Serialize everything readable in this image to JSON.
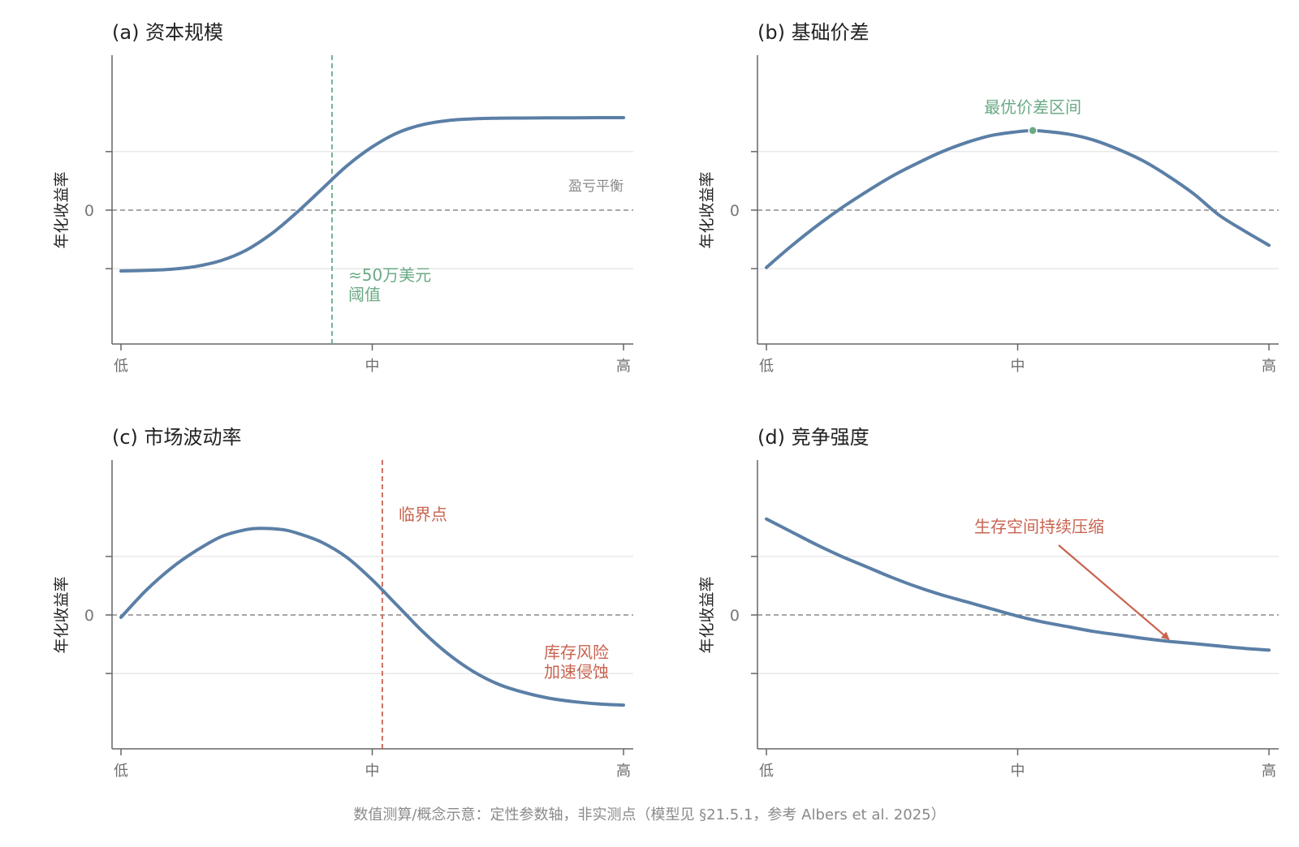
{
  "colors": {
    "curve": "#5b7fa6",
    "green": "#6aaa85",
    "red": "#c8634f",
    "axis": "#666666",
    "grid": "#e4e4e4",
    "zero": "#8a8a8a"
  },
  "footnote": "数值测算/概念示意：定性参数轴，非实测点（模型见 §21.5.1，参考 Albers et al. 2025）",
  "chart_data": [
    {
      "type": "line",
      "title": "(a) 资本规模",
      "ylabel": "年化收益率",
      "xticks": [
        "低",
        "中",
        "高"
      ],
      "xlim": [
        0,
        1
      ],
      "ylim": [
        -1,
        1
      ],
      "zero_label": "0",
      "zero_line_label": "盈亏平衡",
      "series": [
        {
          "x": [
            0,
            0.05,
            0.1,
            0.15,
            0.2,
            0.25,
            0.3,
            0.35,
            0.4,
            0.45,
            0.5,
            0.55,
            0.6,
            0.65,
            0.7,
            0.75,
            0.8,
            0.85,
            0.9,
            0.95,
            1
          ],
          "y": [
            -0.52,
            -0.515,
            -0.505,
            -0.48,
            -0.43,
            -0.34,
            -0.2,
            -0.02,
            0.18,
            0.38,
            0.54,
            0.66,
            0.73,
            0.765,
            0.78,
            0.785,
            0.787,
            0.788,
            0.789,
            0.79,
            0.79
          ]
        }
      ],
      "vline": {
        "x": 0.42,
        "style": "green",
        "label": [
          "≈50万美元",
          "阈值"
        ]
      }
    },
    {
      "type": "line",
      "title": "(b) 基础价差",
      "ylabel": "年化收益率",
      "xticks": [
        "低",
        "中",
        "高"
      ],
      "xlim": [
        0,
        1
      ],
      "ylim": [
        -1,
        1
      ],
      "zero_label": "0",
      "series": [
        {
          "x": [
            0,
            0.05,
            0.1,
            0.15,
            0.2,
            0.25,
            0.3,
            0.35,
            0.4,
            0.45,
            0.5,
            0.53,
            0.55,
            0.6,
            0.65,
            0.7,
            0.75,
            0.8,
            0.85,
            0.9,
            0.95,
            1
          ],
          "y": [
            -0.49,
            -0.305,
            -0.135,
            0.02,
            0.16,
            0.29,
            0.4,
            0.5,
            0.58,
            0.64,
            0.67,
            0.68,
            0.675,
            0.65,
            0.6,
            0.52,
            0.42,
            0.29,
            0.14,
            -0.04,
            -0.175,
            -0.3
          ]
        }
      ],
      "marker": {
        "x": 0.53,
        "y": 0.68,
        "label": "最优价差区间"
      }
    },
    {
      "type": "line",
      "title": "(c) 市场波动率",
      "ylabel": "年化收益率",
      "xticks": [
        "低",
        "中",
        "高"
      ],
      "xlim": [
        0,
        1
      ],
      "ylim": [
        -1,
        1
      ],
      "zero_label": "0",
      "series": [
        {
          "x": [
            0,
            0.05,
            0.1,
            0.15,
            0.2,
            0.25,
            0.28,
            0.32,
            0.35,
            0.4,
            0.45,
            0.5,
            0.55,
            0.6,
            0.65,
            0.7,
            0.75,
            0.8,
            0.85,
            0.9,
            0.95,
            1
          ],
          "y": [
            -0.02,
            0.21,
            0.4,
            0.55,
            0.67,
            0.73,
            0.74,
            0.73,
            0.7,
            0.62,
            0.49,
            0.3,
            0.08,
            -0.14,
            -0.33,
            -0.48,
            -0.59,
            -0.66,
            -0.71,
            -0.74,
            -0.76,
            -0.77
          ]
        }
      ],
      "vline": {
        "x": 0.52,
        "style": "red",
        "label": [
          "临界点"
        ]
      },
      "annotation": [
        "库存风险",
        "加速侵蚀"
      ]
    },
    {
      "type": "line",
      "title": "(d) 竞争强度",
      "ylabel": "年化收益率",
      "xticks": [
        "低",
        "中",
        "高"
      ],
      "xlim": [
        0,
        1
      ],
      "ylim": [
        -1,
        1
      ],
      "zero_label": "0",
      "series": [
        {
          "x": [
            0,
            0.05,
            0.1,
            0.15,
            0.2,
            0.25,
            0.3,
            0.35,
            0.4,
            0.45,
            0.5,
            0.55,
            0.6,
            0.65,
            0.7,
            0.75,
            0.8,
            0.85,
            0.9,
            0.95,
            1
          ],
          "y": [
            0.82,
            0.71,
            0.6,
            0.5,
            0.41,
            0.32,
            0.24,
            0.17,
            0.11,
            0.05,
            -0.01,
            -0.06,
            -0.1,
            -0.14,
            -0.17,
            -0.2,
            -0.225,
            -0.245,
            -0.265,
            -0.285,
            -0.3
          ]
        }
      ],
      "arrow_label": "生存空间持续压缩",
      "arrow_target_x": 0.8
    }
  ]
}
